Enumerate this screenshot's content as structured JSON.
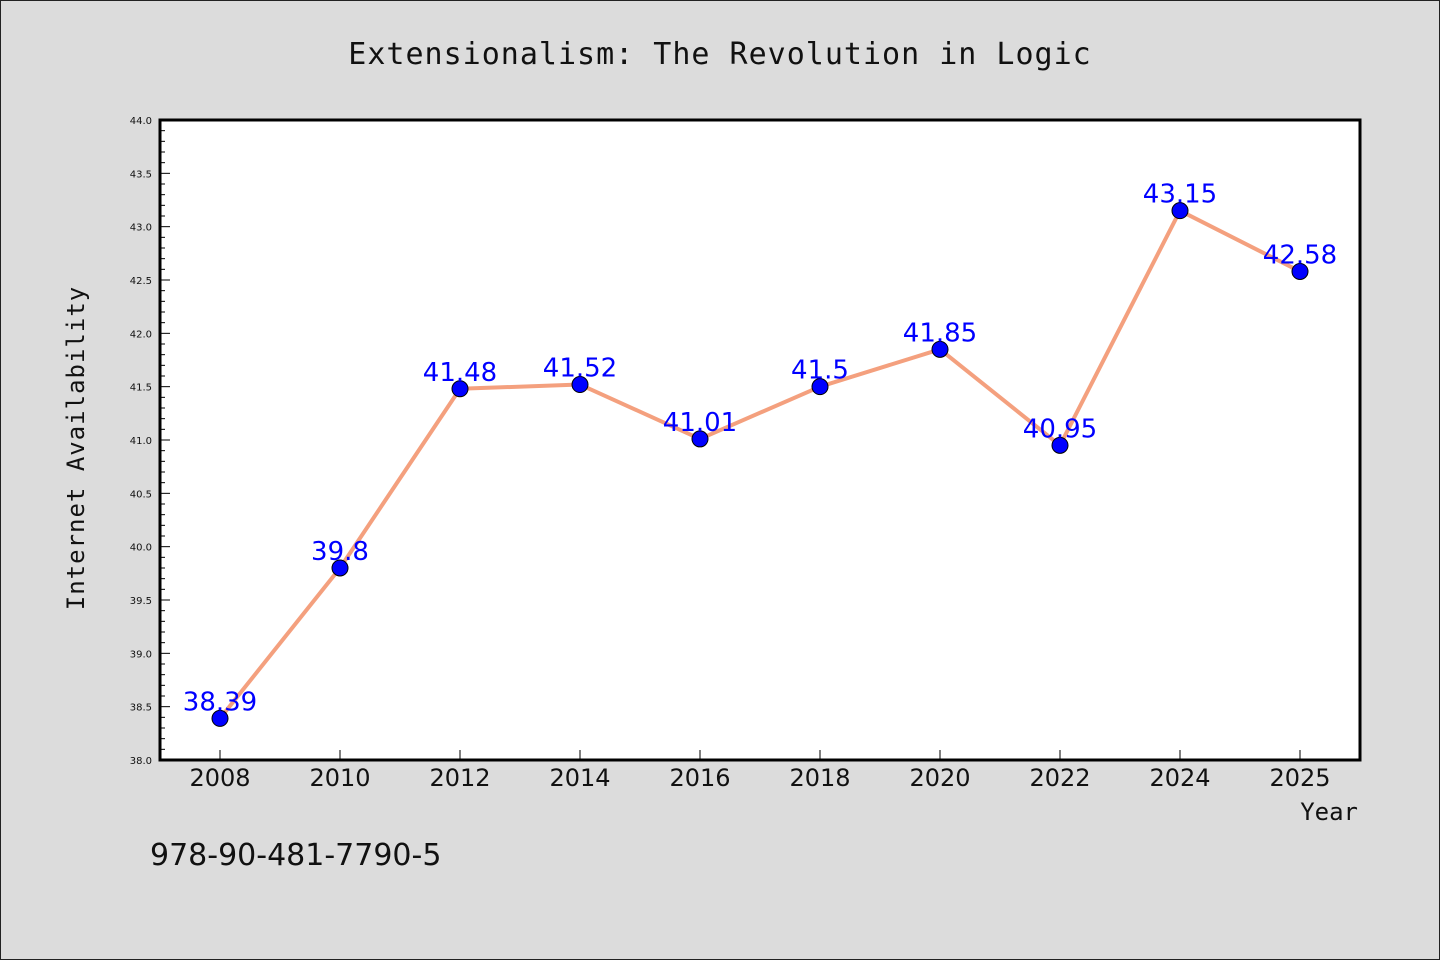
{
  "chart_data": {
    "type": "line",
    "title": "Extensionalism: The Revolution in Logic",
    "xlabel": "Year",
    "ylabel": "Internet Availability",
    "categories": [
      "2008",
      "2010",
      "2012",
      "2014",
      "2016",
      "2018",
      "2020",
      "2022",
      "2024",
      "2025"
    ],
    "values": [
      38.39,
      39.8,
      41.48,
      41.52,
      41.01,
      41.5,
      41.85,
      40.95,
      43.15,
      42.58
    ],
    "data_labels": [
      "38.39",
      "39.8",
      "41.48",
      "41.52",
      "41.01",
      "41.5",
      "41.85",
      "40.95",
      "43.15",
      "42.58"
    ],
    "ylim": [
      38.0,
      44.0
    ],
    "y_ticks": [
      "38.0",
      "38.5",
      "39.0",
      "39.5",
      "40.0",
      "40.5",
      "41.0",
      "41.5",
      "42.0",
      "42.5",
      "43.0",
      "43.5",
      "44.0"
    ],
    "grid": false,
    "legend": "none",
    "line_color": "#f4a07e",
    "marker_color": "#0000ff",
    "label_color": "#0000ff",
    "background_color": "#dcdcdc",
    "plot_background": "#ffffff"
  },
  "footer": {
    "isbn": "978-90-481-7790-5"
  }
}
